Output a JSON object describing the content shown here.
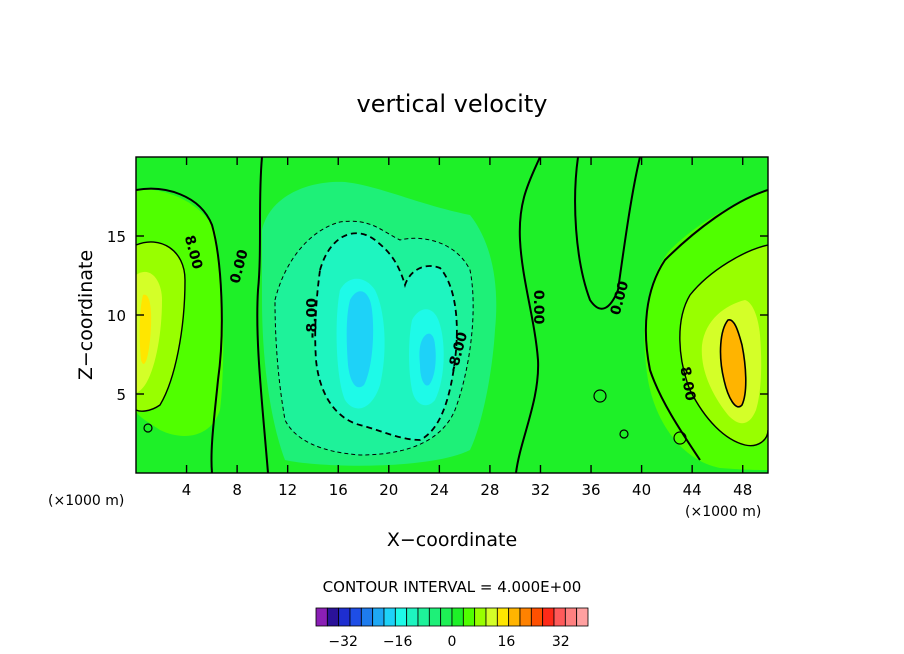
{
  "chart_data": {
    "type": "heatmap",
    "title": "vertical velocity",
    "xlabel": "X−coordinate",
    "ylabel": "Z−coordinate",
    "x_unit_left": "(×1000 m)",
    "x_unit_right": "(×1000 m)",
    "xlim": [
      0,
      50
    ],
    "ylim": [
      0,
      20
    ],
    "x_ticks": [
      4,
      8,
      12,
      16,
      20,
      24,
      28,
      32,
      36,
      40,
      44,
      48
    ],
    "y_ticks": [
      5,
      10,
      15
    ],
    "contour_interval_text": "CONTOUR INTERVAL = 4.000E+00",
    "contour_labels": [
      {
        "text": "8.00",
        "x": 4.2,
        "y": 13.9,
        "angle": 75
      },
      {
        "text": "0.00",
        "x": 8.5,
        "y": 13.0,
        "angle": -75
      },
      {
        "text": "-8.00",
        "x": 14.3,
        "y": 9.8,
        "angle": -90
      },
      {
        "text": "-8.00",
        "x": 25.8,
        "y": 7.6,
        "angle": -75
      },
      {
        "text": "0.00",
        "x": 31.5,
        "y": 10.5,
        "angle": 90
      },
      {
        "text": "0.00",
        "x": 38.6,
        "y": 11.0,
        "angle": -75
      },
      {
        "text": "8.00",
        "x": 43.3,
        "y": 5.6,
        "angle": 80
      }
    ],
    "features": [
      {
        "kind": "min",
        "x": 17.5,
        "y": 9.0,
        "value": -20
      },
      {
        "kind": "min",
        "x": 23.4,
        "y": 7.2,
        "value": -18
      },
      {
        "kind": "max",
        "x": 1.5,
        "y": 8.5,
        "value": 14
      },
      {
        "kind": "max",
        "x": 47.3,
        "y": 7.5,
        "value": 17
      }
    ],
    "colorbar": {
      "tick_labels": [
        "−32",
        "−16",
        "0",
        "16",
        "32"
      ],
      "tick_values": [
        -32,
        -16,
        0,
        16,
        32
      ],
      "levels_min": -40,
      "levels_max": 40,
      "step": 4,
      "colors": [
        "#8a1fb5",
        "#2a1299",
        "#1e2ed0",
        "#1e4ee6",
        "#1e7cee",
        "#1ea8f4",
        "#1ed2f8",
        "#1efae8",
        "#1ef5c0",
        "#1ef29a",
        "#1ef078",
        "#1ef055",
        "#1ef028",
        "#50ff00",
        "#98ff00",
        "#d4ff28",
        "#ffe600",
        "#ffb400",
        "#ff8200",
        "#ff5000",
        "#ff2a18",
        "#ff5a5a",
        "#ff8080",
        "#ffa0a0"
      ]
    }
  }
}
